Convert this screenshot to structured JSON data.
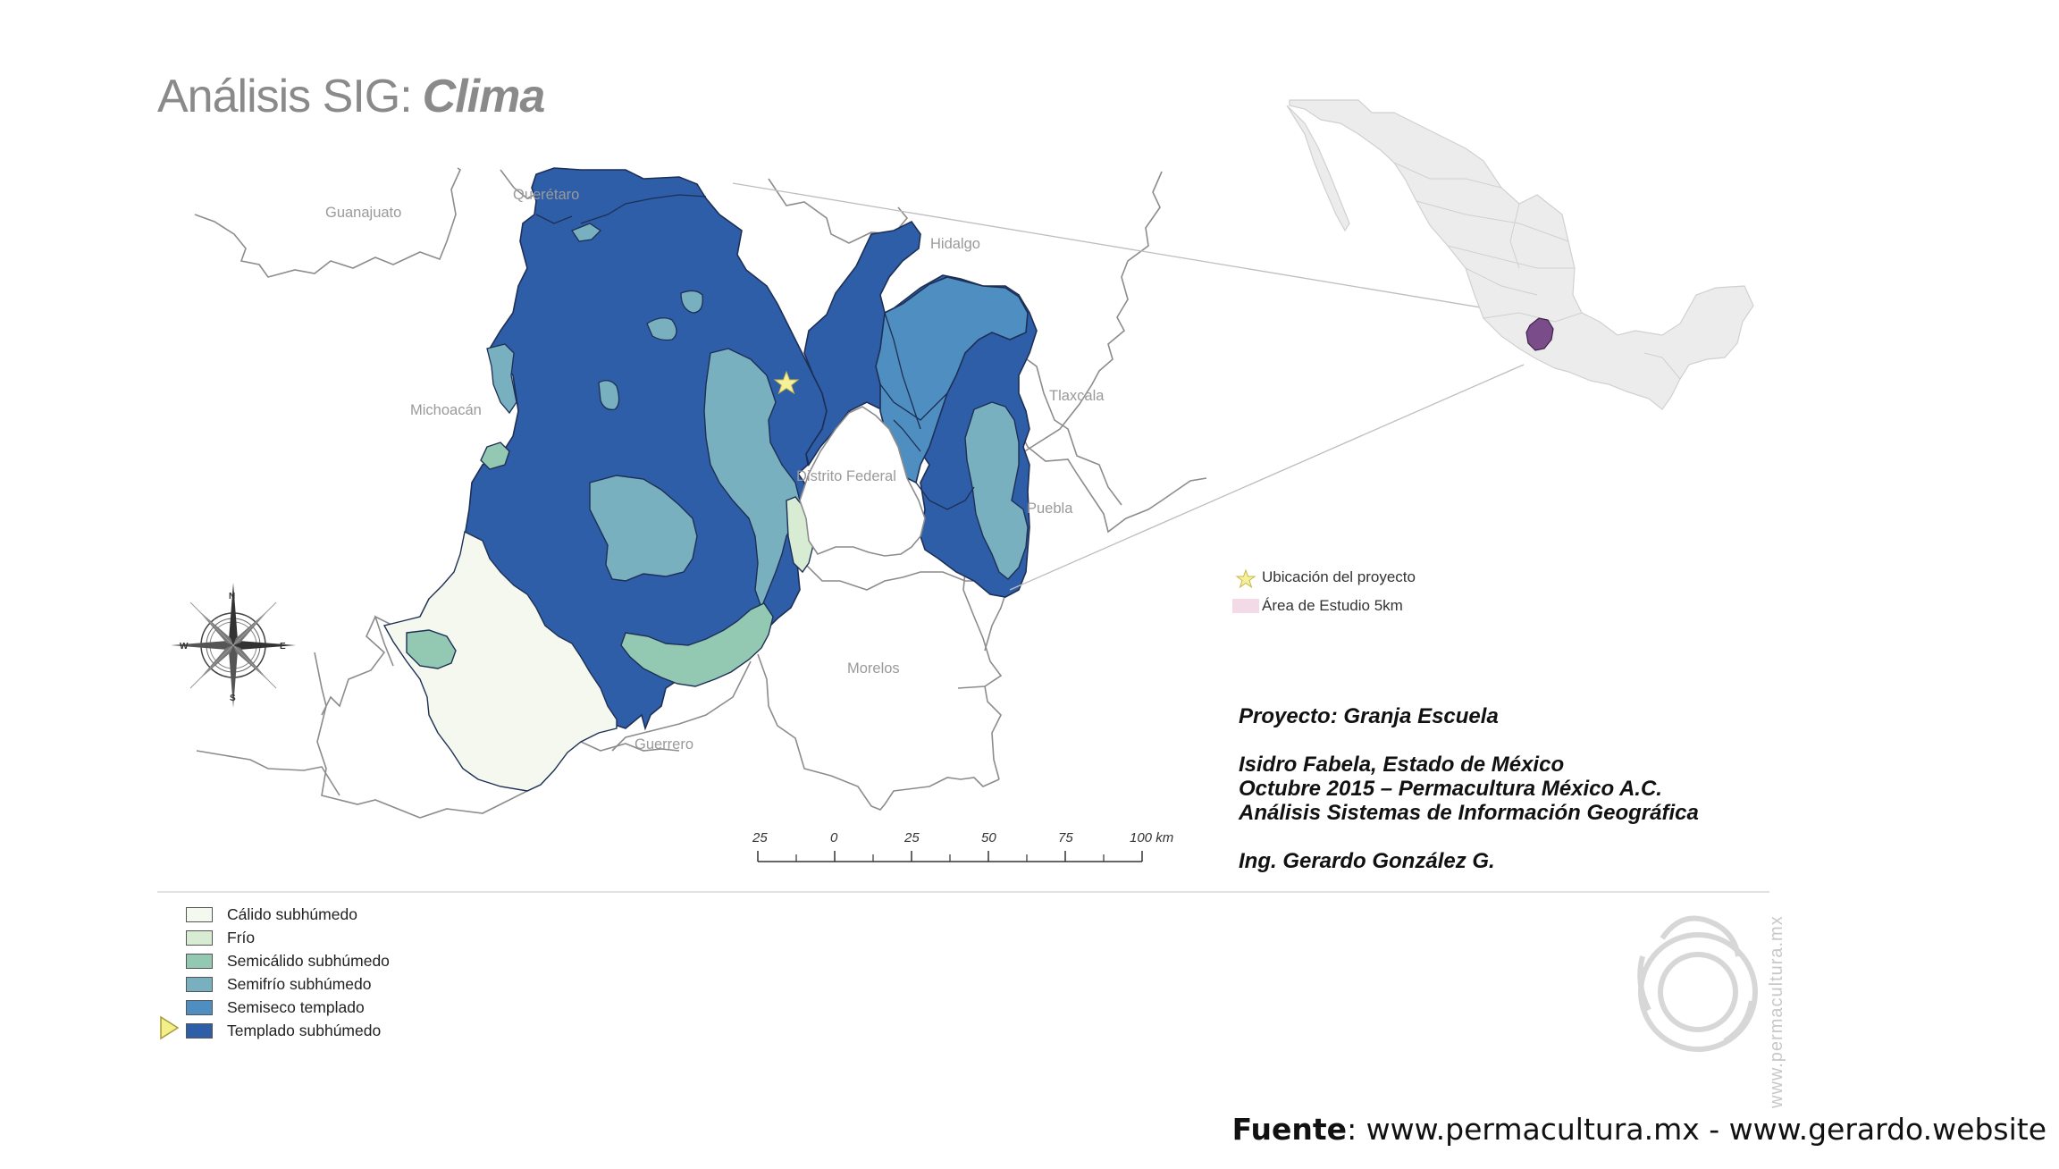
{
  "title": {
    "main": "Análisis SIG:",
    "emphasis": "Clima"
  },
  "states": {
    "guanajuato": "Guanajuato",
    "queretaro": "Querétaro",
    "hidalgo": "Hidalgo",
    "michoacan": "Michoacán",
    "tlaxcala": "Tlaxcala",
    "distrito_federal": "Distrito Federal",
    "puebla": "Puebla",
    "morelos": "Morelos",
    "guerrero": "Guerrero"
  },
  "map_legend": {
    "project_location": "Ubicación del proyecto",
    "study_area": "Área de Estudio 5km"
  },
  "climate_legend": [
    {
      "label": "Cálido subhúmedo",
      "color": "#f4f8ee"
    },
    {
      "label": "Frío",
      "color": "#d8ecd4"
    },
    {
      "label": "Semicálido subhúmedo",
      "color": "#93c9b3"
    },
    {
      "label": "Semifrío subhúmedo",
      "color": "#78b0c0"
    },
    {
      "label": "Semiseco templado",
      "color": "#4f8ec0"
    },
    {
      "label": "Templado subhúmedo",
      "color": "#2f5ea8"
    }
  ],
  "scale_bar": {
    "ticks": [
      "25",
      "0",
      "25",
      "50",
      "75",
      "100 km"
    ]
  },
  "compass": {
    "n": "N",
    "s": "S",
    "e": "E",
    "w": "W"
  },
  "info": {
    "project": "Proyecto: Granja Escuela",
    "location": "Isidro Fabela, Estado de México",
    "date_org": "Octubre 2015 – Permacultura México A.C.",
    "analysis": "Análisis Sistemas de Información Geográfica",
    "author": "Ing. Gerardo González G."
  },
  "watermark": "www.permacultura.mx",
  "footer": {
    "label": "Fuente",
    "rest": ": www.permacultura.mx - www.gerardo.website"
  },
  "colors": {
    "accent_star": "#f5f09a",
    "study_area": "#f2dbe6",
    "edomex_inset": "#7a4d8a"
  }
}
